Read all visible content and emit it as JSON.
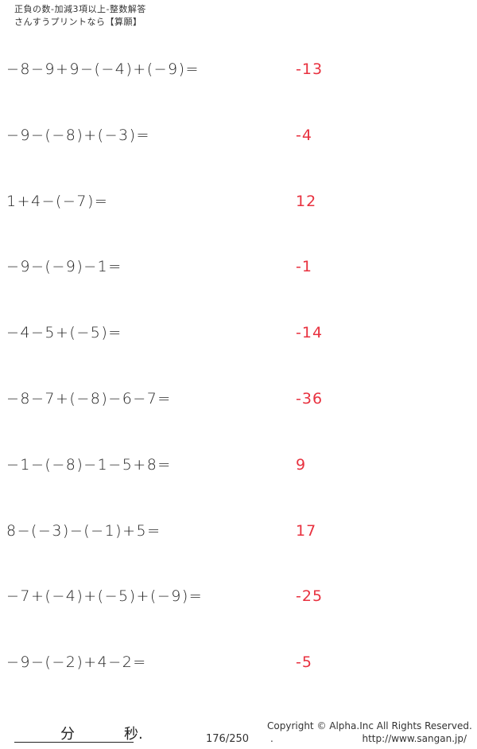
{
  "header": {
    "title": "正負の数-加減3項以上-整数解答",
    "subtitle": "さんすうプリントなら【算願】"
  },
  "problems": [
    {
      "question": "−8−9+9−(−4)+(−9)=",
      "answer": "-13"
    },
    {
      "question": "−9−(−8)+(−3)=",
      "answer": "-4"
    },
    {
      "question": "1+4−(−7)=",
      "answer": "12"
    },
    {
      "question": "−9−(−9)−1=",
      "answer": "-1"
    },
    {
      "question": "−4−5+(−5)=",
      "answer": "-14"
    },
    {
      "question": "−8−7+(−8)−6−7=",
      "answer": "-36"
    },
    {
      "question": "−1−(−8)−1−5+8=",
      "answer": "9"
    },
    {
      "question": "8−(−3)−(−1)+5=",
      "answer": "17"
    },
    {
      "question": "−7+(−4)+(−5)+(−9)=",
      "answer": "-25"
    },
    {
      "question": "−9−(−2)+4−2=",
      "answer": "-5"
    }
  ],
  "footer": {
    "minutes_label": "分",
    "seconds_label": "秒.",
    "page": "176/250",
    "copyright": "Copyright ©  Alpha.Inc All Rights Reserved.",
    "dot": ".",
    "url": "http://www.sangan.jp/"
  },
  "colors": {
    "answer": "#e8313f"
  }
}
